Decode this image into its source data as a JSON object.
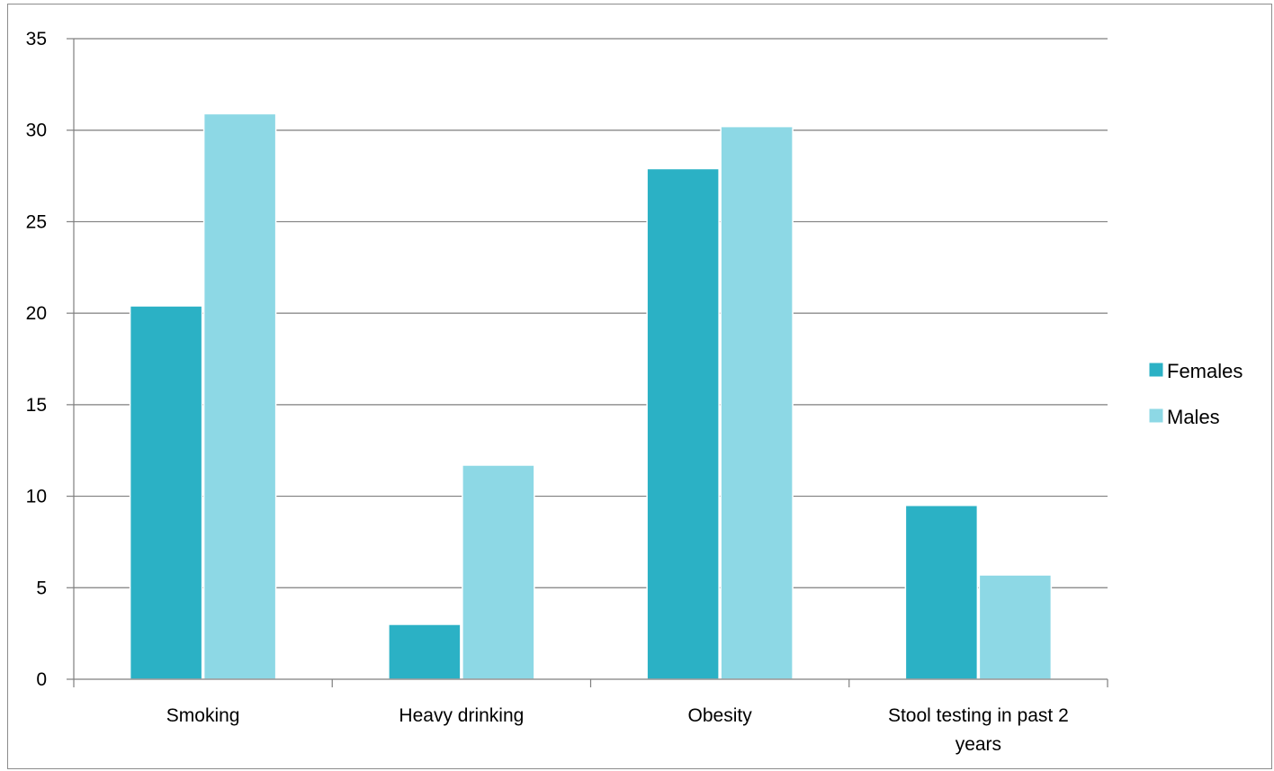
{
  "chart_data": {
    "type": "bar",
    "title": "",
    "xlabel": "",
    "ylabel": "",
    "categories": [
      "Smoking",
      "Heavy drinking",
      "Obesity",
      "Stool testing in past 2 years"
    ],
    "category_lines": [
      [
        "Smoking"
      ],
      [
        "Heavy drinking"
      ],
      [
        "Obesity"
      ],
      [
        "Stool testing in past 2",
        "years"
      ]
    ],
    "series": [
      {
        "name": "Females",
        "values": [
          20.4,
          3.0,
          27.9,
          9.5
        ]
      },
      {
        "name": "Males",
        "values": [
          30.9,
          11.7,
          30.2,
          5.7
        ]
      }
    ],
    "ylim": [
      0,
      35
    ],
    "yticks": [
      0,
      5,
      10,
      15,
      20,
      25,
      30,
      35
    ],
    "grid": true,
    "legend_position": "right",
    "colors": {
      "Females": "#2bb1c5",
      "Males": "#8dd8e5",
      "gridline": "#7f7f7f",
      "axis": "#7f7f7f"
    }
  }
}
